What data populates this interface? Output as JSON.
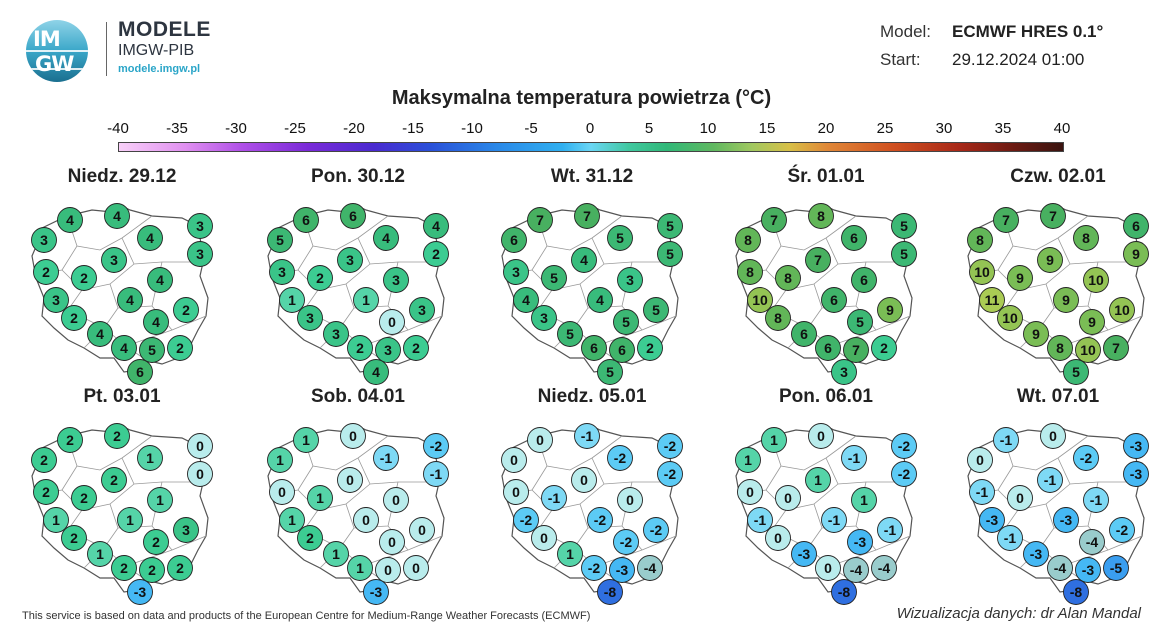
{
  "logo": {
    "text_top": "IM",
    "text_bottom": "GW",
    "icon": "imgw-logo-icon"
  },
  "brand": {
    "name": "MODELE",
    "org": "IMGW-PIB",
    "site": "modele.imgw.pl"
  },
  "meta": {
    "model_label": "Model:",
    "model_value": "ECMWF HRES 0.1°",
    "start_label": "Start:",
    "start_value": "29.12.2024 01:00"
  },
  "title": "Maksymalna temperatura powietrza (°C)",
  "scale": {
    "labels": [
      "-40",
      "-35",
      "-30",
      "-25",
      "-20",
      "-15",
      "-10",
      "-5",
      "0",
      "5",
      "10",
      "15",
      "20",
      "25",
      "30",
      "35",
      "40"
    ],
    "min": -40,
    "max": 40
  },
  "days": [
    {
      "label": "Niedz. 29.12",
      "values": [
        4,
        4,
        3,
        3,
        4,
        3,
        3,
        2,
        2,
        4,
        3,
        4,
        2,
        2,
        4,
        4,
        4,
        5,
        2,
        6
      ]
    },
    {
      "label": "Pon. 30.12",
      "values": [
        6,
        6,
        4,
        5,
        4,
        2,
        3,
        3,
        2,
        3,
        1,
        1,
        3,
        3,
        0,
        3,
        2,
        3,
        2,
        4
      ]
    },
    {
      "label": "Wt. 31.12",
      "values": [
        7,
        7,
        5,
        6,
        5,
        5,
        4,
        3,
        5,
        3,
        4,
        4,
        3,
        5,
        5,
        5,
        6,
        6,
        2,
        5
      ]
    },
    {
      "label": "Śr. 01.01",
      "values": [
        7,
        8,
        5,
        8,
        6,
        5,
        7,
        8,
        8,
        6,
        10,
        6,
        8,
        9,
        5,
        6,
        6,
        7,
        2,
        3
      ]
    },
    {
      "label": "Czw. 02.01",
      "values": [
        7,
        7,
        6,
        8,
        8,
        9,
        9,
        10,
        9,
        10,
        11,
        9,
        10,
        10,
        9,
        9,
        8,
        10,
        7,
        5
      ]
    },
    {
      "label": "Pt. 03.01",
      "values": [
        2,
        2,
        0,
        2,
        1,
        0,
        2,
        2,
        2,
        1,
        1,
        1,
        2,
        3,
        2,
        1,
        2,
        2,
        2,
        -3
      ]
    },
    {
      "label": "Sob. 04.01",
      "values": [
        1,
        0,
        -2,
        1,
        -1,
        -1,
        0,
        0,
        1,
        0,
        1,
        0,
        2,
        0,
        0,
        1,
        1,
        0,
        0,
        -3
      ]
    },
    {
      "label": "Niedz. 05.01",
      "values": [
        0,
        -1,
        -2,
        0,
        -2,
        -2,
        0,
        0,
        -1,
        0,
        -2,
        -2,
        0,
        -2,
        -2,
        1,
        -2,
        -3,
        -4,
        -8
      ]
    },
    {
      "label": "Pon. 06.01",
      "values": [
        1,
        0,
        -2,
        1,
        -1,
        -2,
        1,
        0,
        0,
        1,
        -1,
        -1,
        0,
        -1,
        -3,
        -3,
        0,
        -4,
        -4,
        -8
      ]
    },
    {
      "label": "Wt. 07.01",
      "values": [
        -1,
        0,
        -3,
        0,
        -2,
        -3,
        -1,
        -1,
        0,
        -1,
        -3,
        -3,
        -1,
        -2,
        -4,
        -3,
        -4,
        -3,
        -5,
        -8
      ]
    }
  ],
  "footer": {
    "left": "This service is based on data and products of the European Centre for Medium-Range Weather Forecasts (ECMWF)",
    "right": "Wizualizacja danych: dr Alan Mandal"
  }
}
